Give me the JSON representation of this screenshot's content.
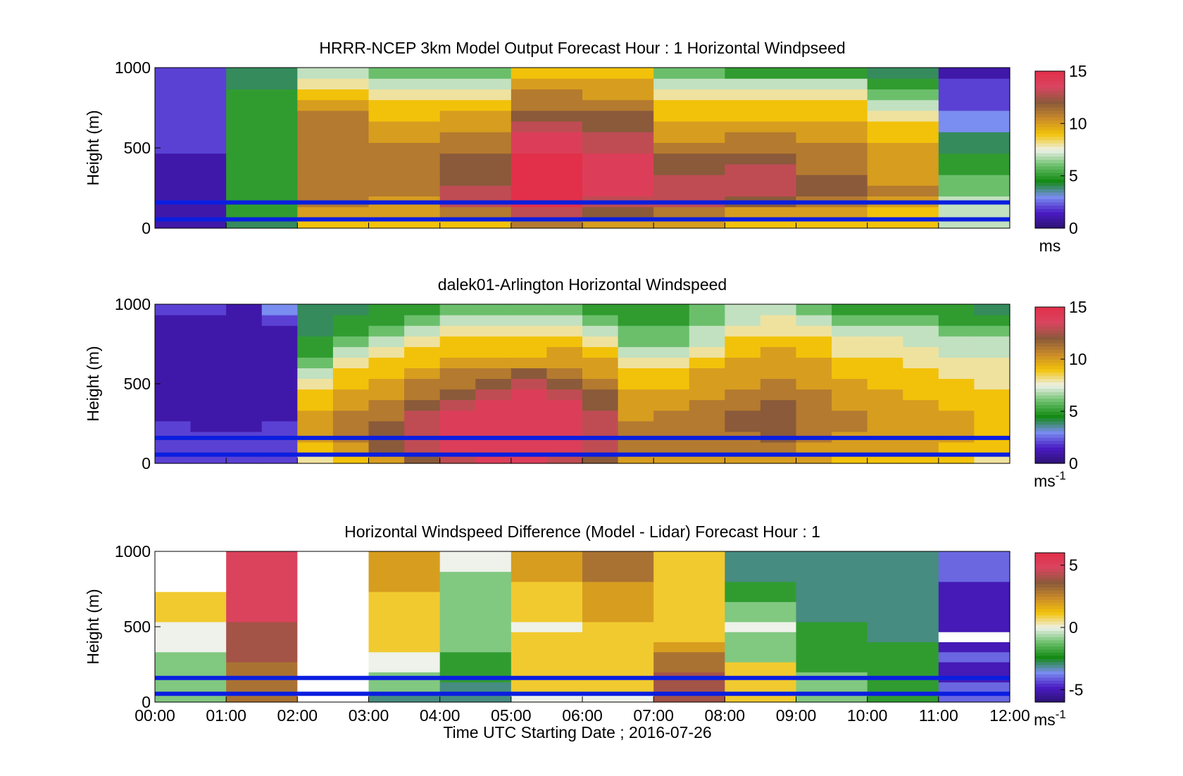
{
  "figure": {
    "xlabel": "Time UTC  Starting Date ; 2016-07-26",
    "xticks": [
      "00:00",
      "01:00",
      "02:00",
      "03:00",
      "04:00",
      "05:00",
      "06:00",
      "07:00",
      "08:00",
      "09:00",
      "10:00",
      "11:00",
      "12:00"
    ]
  },
  "colors": {
    "palette": [
      "#2d1272",
      "#4a1bc4",
      "#7a8df0",
      "#128a12",
      "#6bbf6b",
      "#eef2ea",
      "#f2c20a",
      "#c98a2a",
      "#8a5a3a",
      "#d94560",
      "#e2304a"
    ],
    "ref_lines": "#0a1ee0",
    "missing": "#808080"
  },
  "chart_data": [
    {
      "type": "heatmap",
      "title": "HRRR-NCEP 3km Model Output   Forecast Hour : 1 Horizontal Windpseed",
      "ylabel": "Height (m)",
      "xlim": [
        0,
        12
      ],
      "ylim": [
        0,
        1000
      ],
      "yticks": [
        "0",
        "500",
        "1000"
      ],
      "reference_lines_m": [
        160,
        55
      ],
      "colorbar": {
        "ticks": [
          "0",
          "5",
          "10",
          "15"
        ],
        "range": [
          0,
          15
        ],
        "unit": "ms"
      },
      "columns": [
        {
          "hour": "00:00",
          "speed_bottom_to_top": [
            1,
            1,
            1,
            1,
            1,
            1,
            1,
            2,
            2,
            2,
            2,
            2,
            2,
            2,
            2
          ]
        },
        {
          "hour": "01:00",
          "speed_bottom_to_top": [
            4,
            5,
            5,
            5,
            5,
            5,
            5,
            5,
            5,
            5,
            5,
            5,
            5,
            4,
            4
          ]
        },
        {
          "hour": "02:00",
          "speed_bottom_to_top": [
            9,
            10,
            11,
            11,
            11,
            11,
            11,
            11,
            11,
            11,
            11,
            10,
            9,
            8,
            7
          ]
        },
        {
          "hour": "03:00",
          "speed_bottom_to_top": [
            9,
            10,
            10,
            11,
            11,
            11,
            11,
            11,
            10,
            10,
            9,
            9,
            8,
            7,
            6
          ]
        },
        {
          "hour": "04:00",
          "speed_bottom_to_top": [
            9,
            11,
            13,
            13,
            12,
            12,
            12,
            11,
            11,
            10,
            10,
            9,
            8,
            7,
            6
          ]
        },
        {
          "hour": "05:00",
          "speed_bottom_to_top": [
            11,
            13,
            15,
            15,
            15,
            15,
            15,
            14,
            14,
            13,
            12,
            11,
            11,
            10,
            9
          ]
        },
        {
          "hour": "06:00",
          "speed_bottom_to_top": [
            10,
            12,
            13,
            14,
            14,
            14,
            14,
            13,
            13,
            12,
            12,
            11,
            10,
            10,
            9
          ]
        },
        {
          "hour": "07:00",
          "speed_bottom_to_top": [
            10,
            11,
            13,
            13,
            13,
            12,
            12,
            11,
            10,
            10,
            9,
            9,
            8,
            7,
            6
          ]
        },
        {
          "hour": "08:00",
          "speed_bottom_to_top": [
            9,
            10,
            12,
            13,
            13,
            13,
            12,
            11,
            11,
            10,
            9,
            9,
            8,
            7,
            5
          ]
        },
        {
          "hour": "09:00",
          "speed_bottom_to_top": [
            9,
            10,
            11,
            12,
            12,
            11,
            11,
            11,
            10,
            10,
            9,
            9,
            8,
            7,
            5
          ]
        },
        {
          "hour": "10:00",
          "speed_bottom_to_top": [
            9,
            9,
            10,
            11,
            10,
            10,
            10,
            10,
            9,
            9,
            8,
            7,
            6,
            5,
            4
          ]
        },
        {
          "hour": "11:00",
          "speed_bottom_to_top": [
            7,
            7,
            7,
            6,
            6,
            5,
            5,
            4,
            4,
            3,
            3,
            2,
            2,
            2,
            1
          ]
        }
      ]
    },
    {
      "type": "heatmap",
      "title": "dalek01-Arlington  Horizontal Windspeed",
      "ylabel": "Height (m)",
      "xlim": [
        0,
        12
      ],
      "ylim": [
        0,
        1000
      ],
      "yticks": [
        "0",
        "500",
        "1000"
      ],
      "reference_lines_m": [
        160,
        55
      ],
      "colorbar": {
        "ticks": [
          "0",
          "5",
          "10",
          "15"
        ],
        "range": [
          0,
          15
        ],
        "unit": "ms",
        "unit_superscript": "-1"
      },
      "columns": [
        {
          "hour": "00:00",
          "speed_bottom_to_top": [
            2,
            2,
            2,
            2,
            1,
            1,
            1,
            1,
            1,
            1,
            1,
            1,
            1,
            1,
            2
          ]
        },
        {
          "hour": "00:30",
          "speed_bottom_to_top": [
            2,
            2,
            2,
            1,
            1,
            1,
            1,
            1,
            1,
            1,
            1,
            1,
            1,
            1,
            2
          ]
        },
        {
          "hour": "01:00",
          "speed_bottom_to_top": [
            2,
            2,
            2,
            1,
            1,
            1,
            1,
            1,
            1,
            1,
            1,
            1,
            1,
            1,
            1
          ]
        },
        {
          "hour": "01:30",
          "speed_bottom_to_top": [
            2,
            2,
            2,
            2,
            1,
            1,
            1,
            1,
            1,
            1,
            1,
            1,
            1,
            2,
            3
          ]
        },
        {
          "hour": "02:00",
          "speed_bottom_to_top": [
            8,
            9,
            10,
            10,
            10,
            9,
            9,
            8,
            7,
            6,
            5,
            5,
            4,
            4,
            4
          ]
        },
        {
          "hour": "02:30",
          "speed_bottom_to_top": [
            9,
            10,
            11,
            11,
            11,
            10,
            10,
            9,
            9,
            8,
            7,
            6,
            5,
            5,
            4
          ]
        },
        {
          "hour": "03:00",
          "speed_bottom_to_top": [
            10,
            12,
            12,
            12,
            11,
            11,
            10,
            10,
            9,
            9,
            8,
            7,
            6,
            5,
            5
          ]
        },
        {
          "hour": "03:30",
          "speed_bottom_to_top": [
            12,
            13,
            13,
            13,
            13,
            12,
            11,
            11,
            10,
            9,
            9,
            8,
            7,
            6,
            5
          ]
        },
        {
          "hour": "04:00",
          "speed_bottom_to_top": [
            13,
            14,
            14,
            14,
            14,
            13,
            12,
            11,
            11,
            10,
            9,
            9,
            8,
            7,
            6
          ]
        },
        {
          "hour": "04:30",
          "speed_bottom_to_top": [
            14,
            14,
            14,
            14,
            14,
            14,
            13,
            12,
            11,
            10,
            9,
            9,
            8,
            7,
            6
          ]
        },
        {
          "hour": "05:00",
          "speed_bottom_to_top": [
            14,
            14,
            14,
            14,
            14,
            14,
            14,
            13,
            12,
            10,
            9,
            9,
            8,
            7,
            6
          ]
        },
        {
          "hour": "05:30",
          "speed_bottom_to_top": [
            13,
            14,
            14,
            14,
            14,
            14,
            13,
            12,
            11,
            10,
            10,
            9,
            8,
            7,
            6
          ]
        },
        {
          "hour": "06:00",
          "speed_bottom_to_top": [
            12,
            13,
            13,
            13,
            13,
            12,
            12,
            11,
            10,
            10,
            9,
            8,
            7,
            6,
            5
          ]
        },
        {
          "hour": "06:30",
          "speed_bottom_to_top": [
            10,
            11,
            11,
            11,
            10,
            10,
            10,
            9,
            9,
            8,
            7,
            6,
            6,
            5,
            5
          ]
        },
        {
          "hour": "07:00",
          "speed_bottom_to_top": [
            10,
            11,
            11,
            11,
            11,
            10,
            10,
            9,
            9,
            8,
            7,
            6,
            6,
            5,
            5
          ]
        },
        {
          "hour": "07:30",
          "speed_bottom_to_top": [
            10,
            11,
            11,
            11,
            11,
            11,
            10,
            10,
            10,
            9,
            8,
            7,
            7,
            6,
            6
          ]
        },
        {
          "hour": "08:00",
          "speed_bottom_to_top": [
            10,
            11,
            11,
            12,
            12,
            11,
            11,
            10,
            10,
            10,
            9,
            9,
            8,
            7,
            7
          ]
        },
        {
          "hour": "08:30",
          "speed_bottom_to_top": [
            10,
            11,
            12,
            12,
            12,
            12,
            11,
            11,
            10,
            10,
            10,
            9,
            8,
            8,
            7
          ]
        },
        {
          "hour": "09:00",
          "speed_bottom_to_top": [
            10,
            10,
            11,
            11,
            11,
            11,
            11,
            10,
            10,
            10,
            9,
            9,
            8,
            7,
            6
          ]
        },
        {
          "hour": "09:30",
          "speed_bottom_to_top": [
            9,
            10,
            10,
            11,
            11,
            10,
            10,
            10,
            9,
            9,
            8,
            8,
            7,
            6,
            5
          ]
        },
        {
          "hour": "10:00",
          "speed_bottom_to_top": [
            9,
            10,
            10,
            10,
            10,
            10,
            10,
            9,
            9,
            9,
            8,
            8,
            7,
            6,
            5
          ]
        },
        {
          "hour": "10:30",
          "speed_bottom_to_top": [
            9,
            10,
            10,
            10,
            10,
            10,
            9,
            9,
            9,
            8,
            8,
            7,
            7,
            6,
            5
          ]
        },
        {
          "hour": "11:00",
          "speed_bottom_to_top": [
            9,
            9,
            10,
            10,
            10,
            9,
            9,
            9,
            8,
            8,
            7,
            7,
            6,
            5,
            5
          ]
        },
        {
          "hour": "11:30",
          "speed_bottom_to_top": [
            8,
            9,
            9,
            9,
            9,
            9,
            9,
            8,
            8,
            8,
            7,
            7,
            6,
            5,
            4
          ]
        }
      ]
    },
    {
      "type": "heatmap",
      "title": "Horizontal Windspeed Difference (Model - Lidar) Forecast Hour : 1",
      "ylabel": "Height (m)",
      "xlim": [
        0,
        12
      ],
      "ylim": [
        0,
        1000
      ],
      "yticks": [
        "0",
        "500",
        "1000"
      ],
      "reference_lines_m": [
        160,
        55
      ],
      "colorbar": {
        "ticks": [
          "-5",
          "0",
          "5"
        ],
        "range": [
          -6,
          6
        ],
        "unit": "ms",
        "unit_superscript": "-1"
      },
      "columns": [
        {
          "hour": "00:00",
          "diff_bottom_to_top": [
            -1,
            -1,
            -1,
            -1,
            -1,
            0,
            0,
            0,
            1,
            1,
            1,
            null,
            null,
            null,
            null
          ]
        },
        {
          "hour": "01:00",
          "diff_bottom_to_top": [
            3,
            3,
            3,
            3,
            4,
            4,
            4,
            4,
            5,
            5,
            5,
            5,
            5,
            5,
            5
          ]
        },
        {
          "hour": "02:00",
          "diff_bottom_to_top": [
            null,
            null,
            null,
            null,
            null,
            null,
            null,
            null,
            null,
            null,
            null,
            null,
            null,
            null,
            null
          ]
        },
        {
          "hour": "03:00",
          "diff_bottom_to_top": [
            -3,
            -1,
            -1,
            0,
            0,
            1,
            1,
            1,
            1,
            1,
            1,
            2,
            2,
            2,
            2
          ]
        },
        {
          "hour": "04:00",
          "diff_bottom_to_top": [
            -3,
            -3,
            -2,
            -2,
            -2,
            -1,
            -1,
            -1,
            -1,
            -1,
            -1,
            -1,
            -1,
            0,
            0
          ]
        },
        {
          "hour": "05:00",
          "diff_bottom_to_top": [
            0,
            1,
            1,
            1,
            1,
            1,
            1,
            0,
            1,
            1,
            1,
            1,
            2,
            2,
            2
          ]
        },
        {
          "hour": "06:00",
          "diff_bottom_to_top": [
            0,
            1,
            1,
            1,
            1,
            1,
            1,
            1,
            2,
            2,
            2,
            2,
            3,
            3,
            3
          ]
        },
        {
          "hour": "07:00",
          "diff_bottom_to_top": [
            4,
            4,
            4,
            3,
            3,
            2,
            1,
            1,
            1,
            1,
            1,
            1,
            1,
            1,
            1
          ]
        },
        {
          "hour": "08:00",
          "diff_bottom_to_top": [
            1,
            1,
            1,
            1,
            -1,
            -1,
            -1,
            0,
            -1,
            -1,
            -2,
            -2,
            -3,
            -3,
            -3
          ]
        },
        {
          "hour": "09:00",
          "diff_bottom_to_top": [
            -1,
            -1,
            -1,
            -2,
            -2,
            -2,
            -2,
            -2,
            -3,
            -3,
            -3,
            -3,
            -3,
            -3,
            -3
          ]
        },
        {
          "hour": "10:00",
          "diff_bottom_to_top": [
            -2,
            -2,
            -2,
            -2,
            -2,
            -2,
            -3,
            -3,
            -3,
            -3,
            -3,
            -3,
            -3,
            -3,
            -3
          ]
        },
        {
          "hour": "11:00",
          "diff_bottom_to_top": [
            -4,
            -4,
            -5,
            -5,
            -4,
            -5,
            null,
            -5,
            -5,
            -5,
            -5,
            -5,
            -4,
            -4,
            -4
          ]
        }
      ]
    }
  ]
}
